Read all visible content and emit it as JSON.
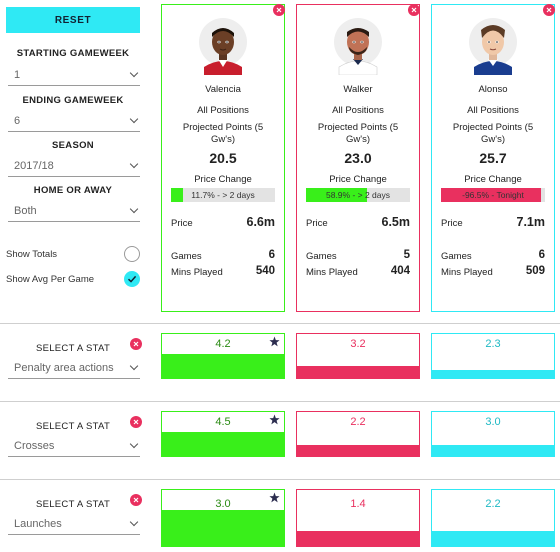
{
  "sidebar": {
    "reset_label": "RESET",
    "starting_gameweek": {
      "label": "STARTING GAMEWEEK",
      "value": "1"
    },
    "ending_gameweek": {
      "label": "ENDING GAMEWEEK",
      "value": "6"
    },
    "season": {
      "label": "SEASON",
      "value": "2017/18"
    },
    "home_or_away": {
      "label": "HOME OR AWAY",
      "value": "Both"
    },
    "show_totals": {
      "label": "Show Totals",
      "checked": false
    },
    "show_avg": {
      "label": "Show Avg Per Game",
      "checked": true
    }
  },
  "labels": {
    "all_positions": "All Positions",
    "projected_points": "Projected Points (5 Gw's)",
    "price_change": "Price Change",
    "price": "Price",
    "games": "Games",
    "mins_played": "Mins Played",
    "select_stat": "SELECT A STAT"
  },
  "colors": {
    "green": "#39ef1a",
    "pink": "#e9305f",
    "cyan": "#2fe9f4"
  },
  "players": [
    {
      "name": "Valencia",
      "position": "All Positions",
      "projected": "20.5",
      "price_change": "11.7% - > 2 days",
      "price_change_pct": 11.7,
      "price": "6.6m",
      "games": "6",
      "mins": "540",
      "color": "#39ef1a"
    },
    {
      "name": "Walker",
      "position": "All Positions",
      "projected": "23.0",
      "price_change": "58.9% - > 2 days",
      "price_change_pct": 58.9,
      "price": "6.5m",
      "games": "5",
      "mins": "404",
      "color": "#e9305f"
    },
    {
      "name": "Alonso",
      "position": "All Positions",
      "projected": "25.7",
      "price_change": "-96.5% - Tonight",
      "price_change_pct": 96.5,
      "price": "7.1m",
      "games": "6",
      "mins": "509",
      "color": "#2fe9f4"
    }
  ],
  "stats": [
    {
      "label": "SELECT A STAT",
      "selected": "Penalty area actions",
      "values": [
        "4.2",
        "3.2",
        "2.3"
      ],
      "fill": [
        1.0,
        0.5,
        0.35
      ],
      "best": 0
    },
    {
      "label": "SELECT A STAT",
      "selected": "Crosses",
      "values": [
        "4.5",
        "2.2",
        "3.0"
      ],
      "fill": [
        1.0,
        0.45,
        0.45
      ],
      "best": 0
    },
    {
      "label": "SELECT A STAT",
      "selected": "Launches",
      "values": [
        "3.0",
        "1.4",
        "2.2"
      ],
      "fill": [
        1.0,
        0.42,
        0.42
      ],
      "best": 0
    }
  ]
}
